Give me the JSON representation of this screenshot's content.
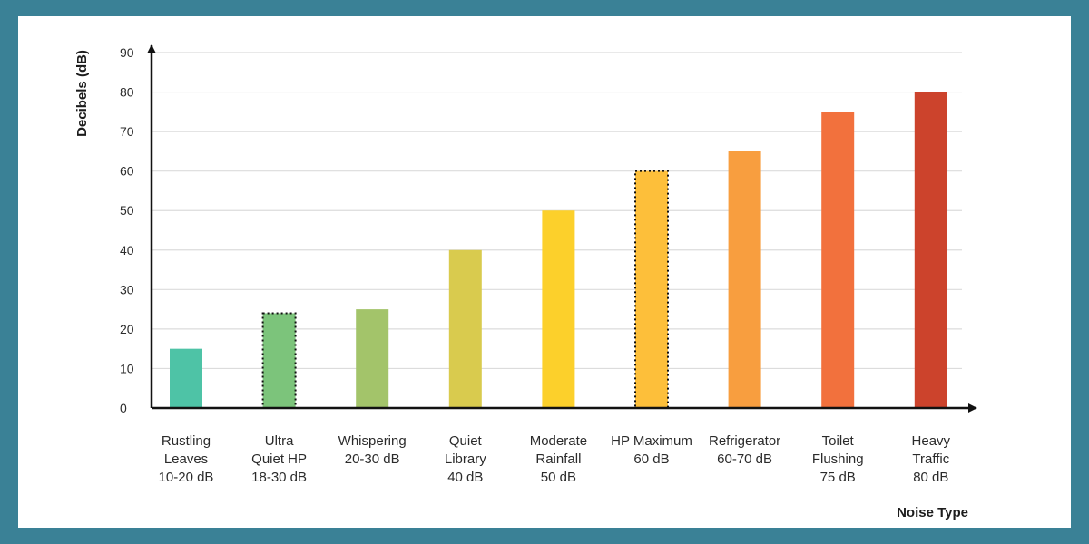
{
  "colors": {
    "frame": "#3a8196",
    "card": "#ffffff",
    "grid": "#dcdcdc",
    "axis": "#111111"
  },
  "chart_data": {
    "type": "bar",
    "title": "",
    "xlabel": "Noise Type",
    "ylabel": "Decibels (dB)",
    "ylim": [
      0,
      90
    ],
    "yticks": [
      0,
      10,
      20,
      30,
      40,
      50,
      60,
      70,
      80,
      90
    ],
    "grid": true,
    "categories": [
      [
        "Rustling",
        "Leaves",
        "10-20 dB"
      ],
      [
        "Ultra",
        "Quiet HP",
        "18-30 dB"
      ],
      [
        "Whispering",
        "20-30 dB"
      ],
      [
        "Quiet",
        "Library",
        "40 dB"
      ],
      [
        "Moderate",
        "Rainfall",
        "50 dB"
      ],
      [
        "HP Maximum",
        "60 dB"
      ],
      [
        "Refrigerator",
        "60-70 dB"
      ],
      [
        "Toilet",
        "Flushing",
        "75 dB"
      ],
      [
        "Heavy",
        "Traffic",
        "80 dB"
      ]
    ],
    "values": [
      15,
      24,
      25,
      40,
      50,
      60,
      65,
      75,
      80
    ],
    "colors": [
      "#4ec3a6",
      "#7cc47b",
      "#a3c46a",
      "#d9cb4e",
      "#fcd02b",
      "#fdbf3a",
      "#f89e3f",
      "#f2713d",
      "#cc432c"
    ],
    "dotted_outline": [
      false,
      true,
      false,
      false,
      false,
      true,
      false,
      false,
      false
    ]
  }
}
